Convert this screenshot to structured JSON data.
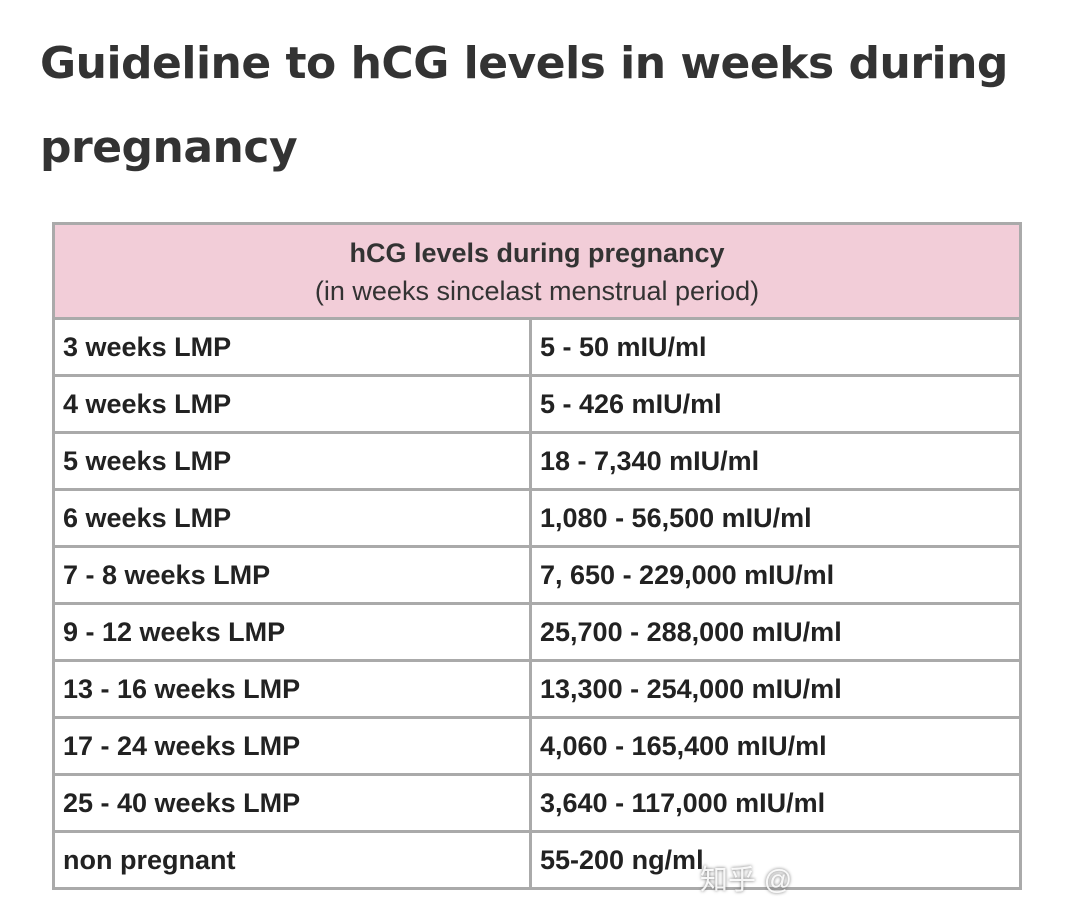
{
  "header": {
    "title": "Guideline to hCG levels in weeks during pregnancy"
  },
  "table": {
    "title": "hCG levels during pregnancy",
    "subtitle": "(in weeks sincelast menstrual period)",
    "rows": [
      [
        "3 weeks LMP",
        "5 - 50 mIU/ml"
      ],
      [
        "4 weeks LMP",
        "5 - 426 mIU/ml"
      ],
      [
        "5 weeks LMP",
        "18 - 7,340 mIU/ml"
      ],
      [
        "6 weeks LMP",
        "1,080 - 56,500 mIU/ml"
      ],
      [
        "7 - 8 weeks LMP",
        "7, 650 - 229,000 mIU/ml"
      ],
      [
        "9 - 12 weeks LMP",
        "25,700 - 288,000 mIU/ml"
      ],
      [
        "13 - 16 weeks LMP",
        "13,300 - 254,000 mIU/ml"
      ],
      [
        "17 - 24 weeks LMP",
        "4,060 - 165,400 mIU/ml"
      ],
      [
        "25 - 40 weeks LMP",
        "3,640 - 117,000 mIU/ml"
      ],
      [
        "non pregnant",
        "55-200 ng/ml"
      ]
    ]
  },
  "watermark": "知乎 @"
}
